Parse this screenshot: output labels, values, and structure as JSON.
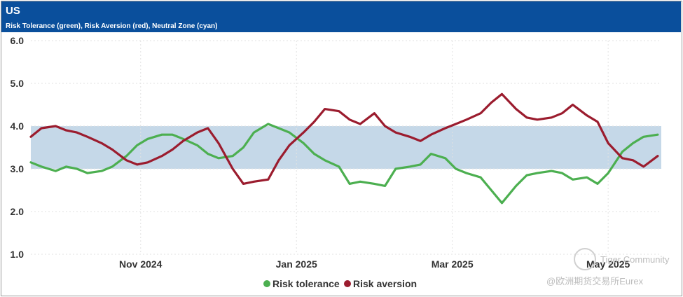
{
  "header": {
    "title": "US",
    "subtitle": "Risk Tolerance (green), Risk Aversion (red), Neutral Zone (cyan)"
  },
  "watermark": {
    "line1": "Tiger Community",
    "line2": "@欧洲期货交易所Eurex"
  },
  "chart_data": {
    "type": "line",
    "title": "US",
    "subtitle": "Risk Tolerance (green), Risk Aversion (red), Neutral Zone (cyan)",
    "ylim": [
      1.0,
      6.0
    ],
    "y_ticks": [
      "1.0",
      "2.0",
      "3.0",
      "4.0",
      "5.0",
      "6.0"
    ],
    "x_ticks": [
      "Nov 2024",
      "Jan 2025",
      "Mar 2025",
      "May 2025"
    ],
    "grid": true,
    "neutral_zone": [
      3.0,
      4.0
    ],
    "colors": {
      "tolerance": "#4caf50",
      "aversion": "#9b1c2e",
      "zone": "#c5d8e8"
    },
    "x_range": [
      0,
      178
    ],
    "series": [
      {
        "name": "Risk tolerance",
        "x": [
          0,
          3,
          7,
          10,
          13,
          16,
          20,
          23,
          27,
          30,
          33,
          37,
          40,
          43,
          47,
          50,
          53,
          57,
          60,
          63,
          67,
          70,
          73,
          77,
          80,
          83,
          87,
          90,
          93,
          97,
          100,
          103,
          107,
          110,
          113,
          117,
          120,
          123,
          127,
          130,
          133,
          137,
          140,
          143,
          147,
          150,
          153,
          157,
          160,
          163,
          167,
          170,
          173,
          177
        ],
        "values": [
          3.15,
          3.05,
          2.95,
          3.05,
          3.0,
          2.9,
          2.95,
          3.05,
          3.3,
          3.55,
          3.7,
          3.8,
          3.8,
          3.7,
          3.55,
          3.35,
          3.25,
          3.3,
          3.5,
          3.85,
          4.05,
          3.95,
          3.85,
          3.6,
          3.35,
          3.2,
          3.05,
          2.65,
          2.7,
          2.65,
          2.6,
          3.0,
          3.05,
          3.1,
          3.35,
          3.25,
          3.0,
          2.9,
          2.8,
          2.5,
          2.2,
          2.6,
          2.85,
          2.9,
          2.95,
          2.9,
          2.75,
          2.8,
          2.65,
          2.9,
          3.4,
          3.6,
          3.75,
          3.8
        ]
      },
      {
        "name": "Risk aversion",
        "x": [
          0,
          3,
          7,
          10,
          13,
          16,
          20,
          23,
          27,
          30,
          33,
          37,
          40,
          43,
          47,
          50,
          53,
          57,
          60,
          63,
          67,
          70,
          73,
          77,
          80,
          83,
          87,
          90,
          93,
          97,
          100,
          103,
          107,
          110,
          113,
          117,
          120,
          123,
          127,
          130,
          133,
          137,
          140,
          143,
          147,
          150,
          153,
          157,
          160,
          163,
          167,
          170,
          173,
          177
        ],
        "values": [
          3.75,
          3.95,
          4.0,
          3.9,
          3.85,
          3.75,
          3.6,
          3.45,
          3.2,
          3.1,
          3.15,
          3.3,
          3.45,
          3.65,
          3.85,
          3.95,
          3.6,
          3.0,
          2.65,
          2.7,
          2.75,
          3.2,
          3.55,
          3.85,
          4.1,
          4.4,
          4.35,
          4.15,
          4.05,
          4.3,
          4.0,
          3.85,
          3.75,
          3.65,
          3.8,
          3.95,
          4.05,
          4.15,
          4.3,
          4.55,
          4.75,
          4.4,
          4.2,
          4.15,
          4.2,
          4.3,
          4.5,
          4.25,
          4.1,
          3.6,
          3.25,
          3.2,
          3.05,
          3.3
        ]
      }
    ],
    "legend": [
      "Risk tolerance",
      "Risk aversion"
    ],
    "legend_position": "bottom-center"
  }
}
